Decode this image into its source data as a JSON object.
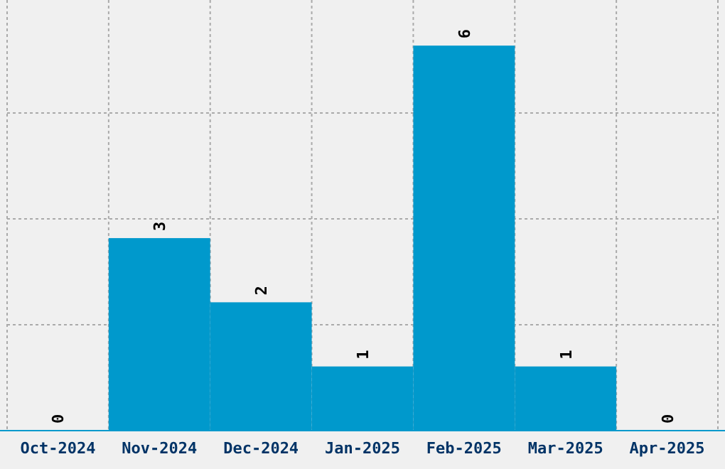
{
  "chart_data": {
    "type": "bar",
    "categories": [
      "Oct-2024",
      "Nov-2024",
      "Dec-2024",
      "Jan-2025",
      "Feb-2025",
      "Mar-2025",
      "Apr-2025"
    ],
    "values": [
      0,
      3,
      2,
      1,
      6,
      1,
      0
    ],
    "color": "#0099cc",
    "data_labels": true,
    "grid": true,
    "tick_labels": "x"
  }
}
